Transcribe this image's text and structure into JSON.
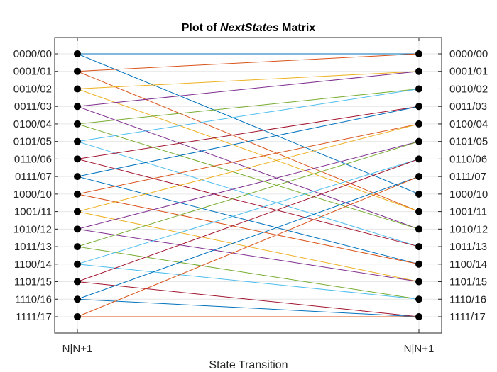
{
  "chart_data": {
    "type": "line",
    "title_prefix": "Plot of ",
    "title_italic": "NextStates",
    "title_suffix": " Matrix",
    "xlabel": "State Transition",
    "x_ticks": [
      "N|N+1",
      "N|N+1"
    ],
    "state_labels": [
      "0000/00",
      "0001/01",
      "0010/02",
      "0011/03",
      "0100/04",
      "0101/05",
      "0110/06",
      "0111/07",
      "1000/10",
      "1001/11",
      "1010/12",
      "1011/13",
      "1100/14",
      "1101/15",
      "1110/16",
      "1111/17"
    ],
    "transitions": [
      {
        "from": 0,
        "to": 0,
        "color": "#0072BD"
      },
      {
        "from": 0,
        "to": 8,
        "color": "#0072BD"
      },
      {
        "from": 1,
        "to": 0,
        "color": "#D95319"
      },
      {
        "from": 1,
        "to": 9,
        "color": "#D95319"
      },
      {
        "from": 2,
        "to": 1,
        "color": "#EDB120"
      },
      {
        "from": 2,
        "to": 9,
        "color": "#EDB120"
      },
      {
        "from": 3,
        "to": 1,
        "color": "#7E2F8E"
      },
      {
        "from": 3,
        "to": 10,
        "color": "#7E2F8E"
      },
      {
        "from": 4,
        "to": 2,
        "color": "#77AC30"
      },
      {
        "from": 4,
        "to": 10,
        "color": "#77AC30"
      },
      {
        "from": 5,
        "to": 2,
        "color": "#4DBEEE"
      },
      {
        "from": 5,
        "to": 11,
        "color": "#4DBEEE"
      },
      {
        "from": 6,
        "to": 3,
        "color": "#A2142F"
      },
      {
        "from": 6,
        "to": 11,
        "color": "#A2142F"
      },
      {
        "from": 7,
        "to": 3,
        "color": "#0072BD"
      },
      {
        "from": 7,
        "to": 12,
        "color": "#0072BD"
      },
      {
        "from": 8,
        "to": 4,
        "color": "#D95319"
      },
      {
        "from": 8,
        "to": 12,
        "color": "#D95319"
      },
      {
        "from": 9,
        "to": 4,
        "color": "#EDB120"
      },
      {
        "from": 9,
        "to": 13,
        "color": "#EDB120"
      },
      {
        "from": 10,
        "to": 5,
        "color": "#7E2F8E"
      },
      {
        "from": 10,
        "to": 13,
        "color": "#7E2F8E"
      },
      {
        "from": 11,
        "to": 5,
        "color": "#77AC30"
      },
      {
        "from": 11,
        "to": 14,
        "color": "#77AC30"
      },
      {
        "from": 12,
        "to": 6,
        "color": "#4DBEEE"
      },
      {
        "from": 12,
        "to": 14,
        "color": "#4DBEEE"
      },
      {
        "from": 13,
        "to": 6,
        "color": "#A2142F"
      },
      {
        "from": 13,
        "to": 15,
        "color": "#A2142F"
      },
      {
        "from": 14,
        "to": 7,
        "color": "#0072BD"
      },
      {
        "from": 14,
        "to": 15,
        "color": "#0072BD"
      },
      {
        "from": 15,
        "to": 7,
        "color": "#D95319"
      },
      {
        "from": 15,
        "to": 15,
        "color": "#D95319"
      }
    ],
    "grid": true,
    "colors": {
      "axis": "#262626",
      "grid": "#e6e6e6",
      "marker": "#000000"
    }
  }
}
